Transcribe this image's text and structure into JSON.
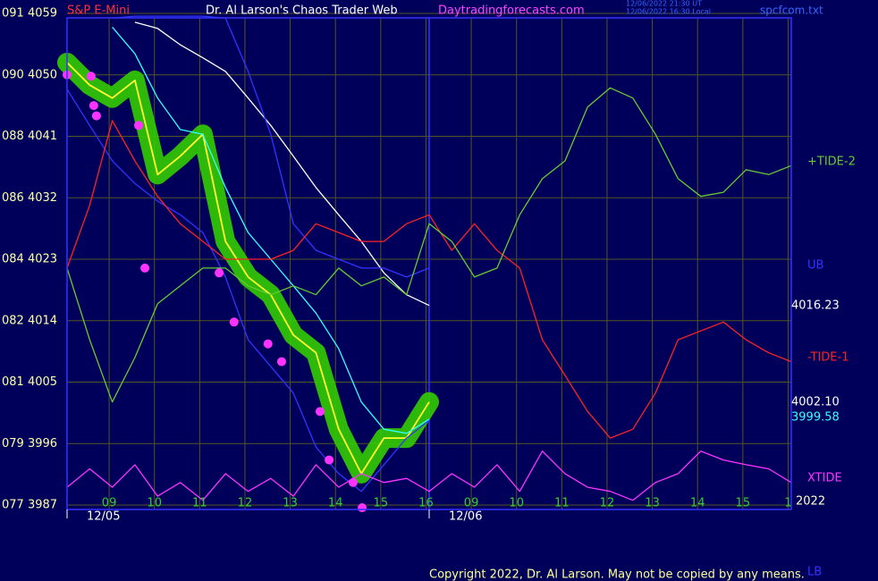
{
  "chart_data": {
    "type": "line",
    "instrument": "S&P E-Mini",
    "title": "Dr. Al Larson's Chaos Trader Web",
    "website": "Daytradingforecasts.com",
    "timestamps": [
      "12/06/2022 21:30 UT",
      "12/06/2022 16:30 Local"
    ],
    "file": "spcfcom.txt",
    "year": "2022",
    "copyright": "Copyright 2022, Dr. Al Larson. May not be copied by any means.",
    "grid": true,
    "day_starts": [
      {
        "x": 0,
        "label": "12/05"
      },
      {
        "x": 8,
        "label": "12/06"
      }
    ],
    "x": [
      0,
      0.5,
      1,
      1.5,
      2,
      2.5,
      3,
      3.5,
      4,
      4.5,
      5,
      5.5,
      6,
      6.5,
      7,
      7.5,
      8,
      8.5,
      9,
      9.5,
      10,
      10.5,
      11,
      11.5,
      12,
      12.5,
      13,
      13.5,
      14,
      14.5,
      15,
      15.5,
      16
    ],
    "xlim": [
      0,
      16
    ],
    "xticks": [
      {
        "value": 0.93,
        "label": "09"
      },
      {
        "value": 1.93,
        "label": "10"
      },
      {
        "value": 2.93,
        "label": "11"
      },
      {
        "value": 3.93,
        "label": "12"
      },
      {
        "value": 4.93,
        "label": "13"
      },
      {
        "value": 5.93,
        "label": "14"
      },
      {
        "value": 6.93,
        "label": "15"
      },
      {
        "value": 7.93,
        "label": "16"
      },
      {
        "value": 8.93,
        "label": "09"
      },
      {
        "value": 9.93,
        "label": "10"
      },
      {
        "value": 10.93,
        "label": "11"
      },
      {
        "value": 11.93,
        "label": "12"
      },
      {
        "value": 12.93,
        "label": "13"
      },
      {
        "value": 13.93,
        "label": "14"
      },
      {
        "value": 14.93,
        "label": "15"
      },
      {
        "value": 15.93,
        "label": "1"
      }
    ],
    "ylim": [
      3987,
      4059
    ],
    "yticks": [
      {
        "value": 4059,
        "label": "091 4059"
      },
      {
        "value": 4050,
        "label": "090 4050"
      },
      {
        "value": 4041,
        "label": "088 4041"
      },
      {
        "value": 4032,
        "label": "086 4032"
      },
      {
        "value": 4023,
        "label": "084 4023"
      },
      {
        "value": 4014,
        "label": "082 4014"
      },
      {
        "value": 4005,
        "label": "081 4005"
      },
      {
        "value": 3996,
        "label": "079 3996"
      },
      {
        "value": 3987,
        "label": "077 3987"
      }
    ],
    "series": [
      {
        "color": "#ffff33",
        "halo": "#33cc00",
        "values": [
          4051.8,
          4048.5,
          4046.6,
          4049.2,
          4035.4,
          4038.1,
          4041.3,
          4025.6,
          4020.4,
          4017.8,
          4011.9,
          4009.3,
          3998.1,
          3991.6,
          3996.8,
          3996.8,
          4002.1,
          null,
          null,
          null,
          null,
          null,
          null,
          null,
          null,
          null,
          null,
          null,
          null,
          null,
          null,
          null,
          null
        ],
        "value_labels": [
          null,
          null,
          null,
          null,
          null,
          null,
          null,
          null,
          null,
          null,
          null,
          null,
          null,
          null,
          null,
          null,
          "4002.10",
          null,
          null,
          null,
          null,
          null,
          null,
          null,
          null,
          null,
          null,
          null,
          null,
          null,
          null,
          null,
          null
        ]
      },
      {
        "color": "#ffffff",
        "values": [
          null,
          null,
          null,
          4057.7,
          4056.8,
          4054.4,
          4052.5,
          4050.5,
          4046.6,
          4042.6,
          4038.1,
          4033.5,
          4029.5,
          4025.6,
          4021.0,
          4017.8,
          4016.23,
          null,
          null,
          null,
          null,
          null,
          null,
          null,
          null,
          null,
          null,
          null,
          null,
          null,
          null,
          null,
          null
        ]
      },
      {
        "color": "#33ffff",
        "values": [
          null,
          null,
          4057.0,
          4053.1,
          4046.6,
          4042.0,
          4041.3,
          4033.5,
          4026.9,
          4023.0,
          4019.1,
          4015.1,
          4009.9,
          4002.1,
          3998.1,
          3997.5,
          3999.58,
          null,
          null,
          null,
          null,
          null,
          null,
          null,
          null,
          null,
          null,
          null,
          null,
          null,
          null,
          null,
          null
        ]
      },
      {
        "name": "UB",
        "color": "#3333ff",
        "values": [
          null,
          null,
          4058.3,
          4058.6,
          4058.6,
          4058.6,
          4058.6,
          4058.3,
          4050.5,
          4041.3,
          4028.2,
          4024.3,
          4023.0,
          4021.7,
          4021.7,
          4020.4,
          4021.7,
          null,
          null,
          null,
          null,
          null,
          null,
          null,
          null,
          null,
          null,
          null,
          null,
          null,
          null,
          null,
          null
        ]
      },
      {
        "name": "LB",
        "color": "#3333ff",
        "values": [
          4047.9,
          4042.6,
          4037.4,
          4034.1,
          4031.5,
          4029.5,
          4026.9,
          4020.4,
          4011.2,
          4007.3,
          4003.4,
          3995.5,
          3991.6,
          3989.0,
          3992.9,
          3996.8,
          3999.4,
          null,
          null,
          null,
          null,
          null,
          null,
          null,
          null,
          null,
          null,
          null,
          null,
          null,
          null,
          null,
          null
        ]
      },
      {
        "name": "-TIDE-1",
        "color": "#ff2222",
        "values": [
          4021.7,
          4030.9,
          4043.3,
          4037.4,
          4032.2,
          4028.2,
          4025.6,
          4023.0,
          4023.0,
          4023.0,
          4024.3,
          4028.2,
          4026.9,
          4025.6,
          4025.6,
          4028.2,
          4029.5,
          4024.3,
          4028.2,
          4024.3,
          4021.7,
          4011.2,
          4006.0,
          4000.7,
          3996.8,
          3998.1,
          4003.4,
          4011.2,
          4012.5,
          4013.8,
          4011.2,
          4009.3,
          4008.0
        ]
      },
      {
        "name": "+TIDE-2",
        "color": "#66cc33",
        "values": [
          4021.7,
          4011.2,
          4002.1,
          4008.6,
          4016.5,
          4019.1,
          4021.7,
          4021.7,
          4019.1,
          4017.8,
          4019.1,
          4017.8,
          4021.7,
          4019.1,
          4020.4,
          4017.8,
          4028.2,
          4025.6,
          4020.4,
          4021.7,
          4029.5,
          4034.8,
          4037.4,
          4045.3,
          4048.1,
          4046.6,
          4041.3,
          4034.8,
          4032.2,
          4032.8,
          4036.1,
          4035.4,
          4036.7
        ]
      },
      {
        "name": "XTIDE",
        "color": "#ff33ff",
        "values": [
          3989.6,
          3992.3,
          3989.6,
          3992.9,
          3988.3,
          3990.3,
          3987.7,
          3991.6,
          3989.0,
          3990.9,
          3988.3,
          3992.9,
          3989.6,
          3991.6,
          3990.3,
          3990.9,
          3989.0,
          3991.6,
          3989.6,
          3992.9,
          3989.0,
          3994.9,
          3991.6,
          3989.6,
          3989.0,
          3987.7,
          3990.3,
          3991.6,
          3994.9,
          3993.6,
          3992.9,
          3992.3,
          3990.3
        ]
      }
    ],
    "markers": {
      "color": "#ff33ff",
      "x": [
        0,
        0.53,
        0.59,
        0.65,
        1.58,
        1.72,
        3.36,
        3.69,
        4.44,
        4.74,
        5.59,
        5.79,
        6.32,
        6.52
      ],
      "values": [
        4050.0,
        4049.8,
        4045.5,
        4044.0,
        4042.6,
        4021.7,
        4021.0,
        4013.8,
        4010.6,
        4008.0,
        4000.7,
        3993.6,
        3990.3,
        3986.6
      ]
    }
  }
}
